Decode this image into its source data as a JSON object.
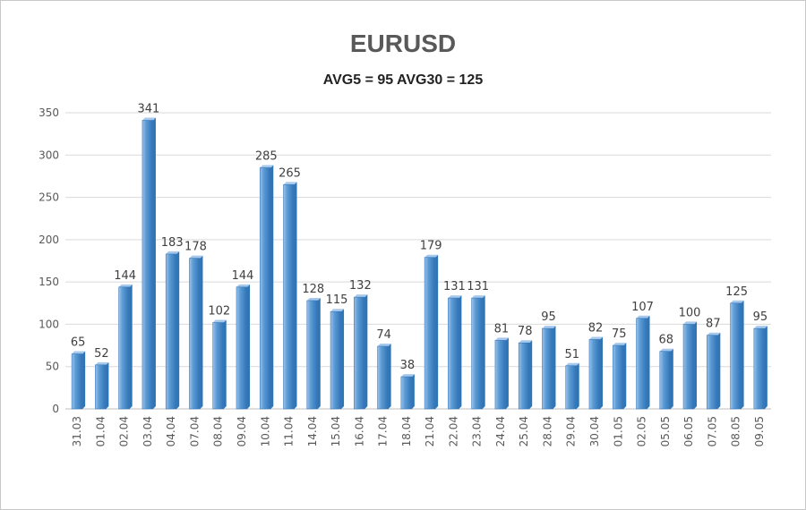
{
  "chart_data": {
    "type": "bar",
    "title": "EURUSD",
    "subtitle": "AVG5 = 95 AVG30 = 125",
    "xlabel": "",
    "ylabel": "",
    "ylim": [
      0,
      350
    ],
    "yticks": [
      0,
      50,
      100,
      150,
      200,
      250,
      300,
      350
    ],
    "grid": true,
    "legend": "none",
    "categories": [
      "31.03",
      "01.04",
      "02.04",
      "03.04",
      "04.04",
      "07.04",
      "08.04",
      "09.04",
      "10.04",
      "11.04",
      "14.04",
      "15.04",
      "16.04",
      "17.04",
      "18.04",
      "21.04",
      "22.04",
      "23.04",
      "24.04",
      "25.04",
      "28.04",
      "29.04",
      "30.04",
      "01.05",
      "02.05",
      "05.05",
      "06.05",
      "07.05",
      "08.05",
      "09.05"
    ],
    "values": [
      65,
      52,
      144,
      341,
      183,
      178,
      102,
      144,
      285,
      265,
      128,
      115,
      132,
      74,
      38,
      179,
      131,
      131,
      81,
      78,
      95,
      51,
      82,
      75,
      107,
      68,
      100,
      87,
      125,
      95
    ],
    "colors": {
      "bar_fill": "#5b9bd5",
      "bar_light": "#a6c8ec",
      "bar_dark": "#2e75b6",
      "grid": "#d9d9d9",
      "axis": "#bfbfbf"
    }
  }
}
